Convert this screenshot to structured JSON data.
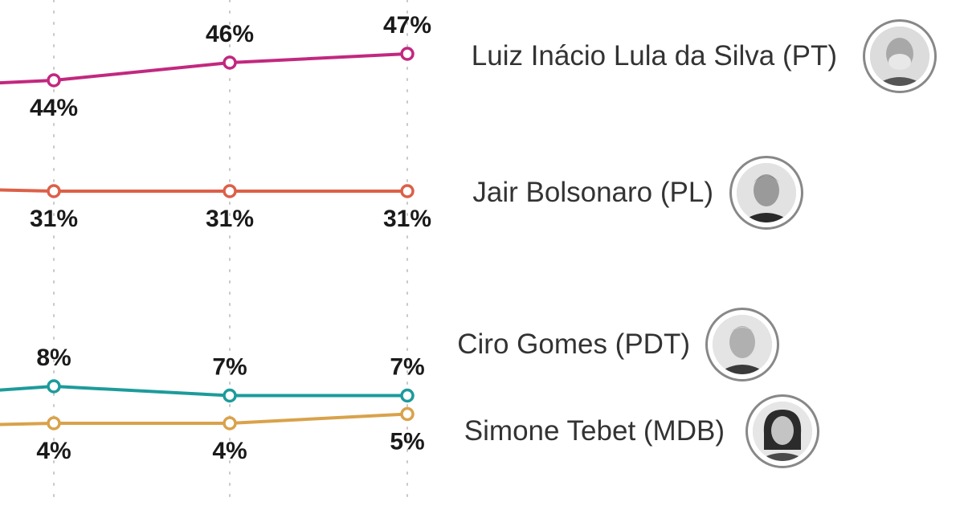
{
  "chart_data": {
    "type": "line",
    "x": [
      "",
      "",
      ""
    ],
    "ylim": [
      0,
      50
    ],
    "grid": "vertical dotted",
    "series": [
      {
        "name": "Luiz Inácio Lula da Silva (PT)",
        "color": "#c2287f",
        "values": [
          44,
          46,
          47
        ],
        "labels": [
          "44%",
          "46%",
          "47%"
        ],
        "label_pos": [
          "below",
          "above",
          "above"
        ],
        "icon": "lula-portrait-icon"
      },
      {
        "name": "Jair Bolsonaro (PL)",
        "color": "#dc6048",
        "values": [
          31,
          31,
          31
        ],
        "labels": [
          "31%",
          "31%",
          "31%"
        ],
        "label_pos": [
          "below",
          "below",
          "below"
        ],
        "icon": "bolsonaro-portrait-icon"
      },
      {
        "name": "Ciro Gomes (PDT)",
        "color": "#1d9b9b",
        "values": [
          8,
          7,
          7
        ],
        "labels": [
          "8%",
          "7%",
          "7%"
        ],
        "label_pos": [
          "above",
          "above",
          "above"
        ],
        "icon": "ciro-gomes-portrait-icon"
      },
      {
        "name": "Simone Tebet (MDB)",
        "color": "#d9a24a",
        "values": [
          4,
          4,
          5
        ],
        "labels": [
          "4%",
          "4%",
          "5%"
        ],
        "label_pos": [
          "below",
          "below",
          "below"
        ],
        "icon": "simone-tebet-portrait-icon"
      }
    ]
  }
}
